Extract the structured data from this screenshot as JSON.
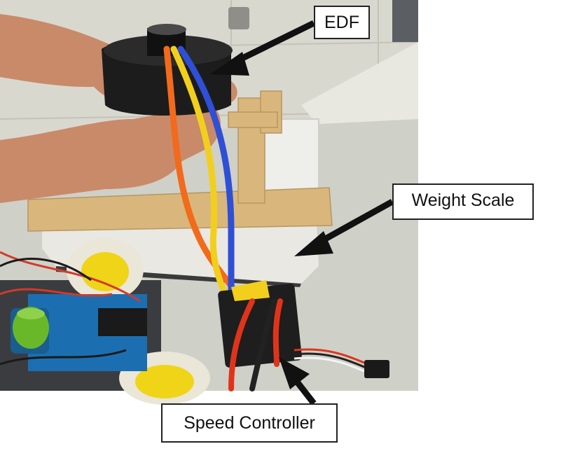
{
  "photo": {
    "subject": "electric ducted fan thrust test rig with weight scale and speed controller",
    "colors": {
      "wall": "#d9d8cf",
      "table": "#cfd0c8",
      "skin": "#c98a6a",
      "wood": "#d9b77c",
      "scale_body": "#e9e8e2",
      "fan_body": "#1c1c1c",
      "wire_orange": "#f26a1b",
      "wire_yellow": "#f2cf1d",
      "wire_blue": "#2f4fd6",
      "wire_red": "#e0341a",
      "wheel_yellow": "#f0d418",
      "circuit_blue": "#1b6fb0",
      "motor_green": "#69b82a"
    }
  },
  "annotations": {
    "edf": "EDF",
    "weight_scale": "Weight Scale",
    "speed_controller": "Speed Controller"
  },
  "arrow_color": "#111111"
}
